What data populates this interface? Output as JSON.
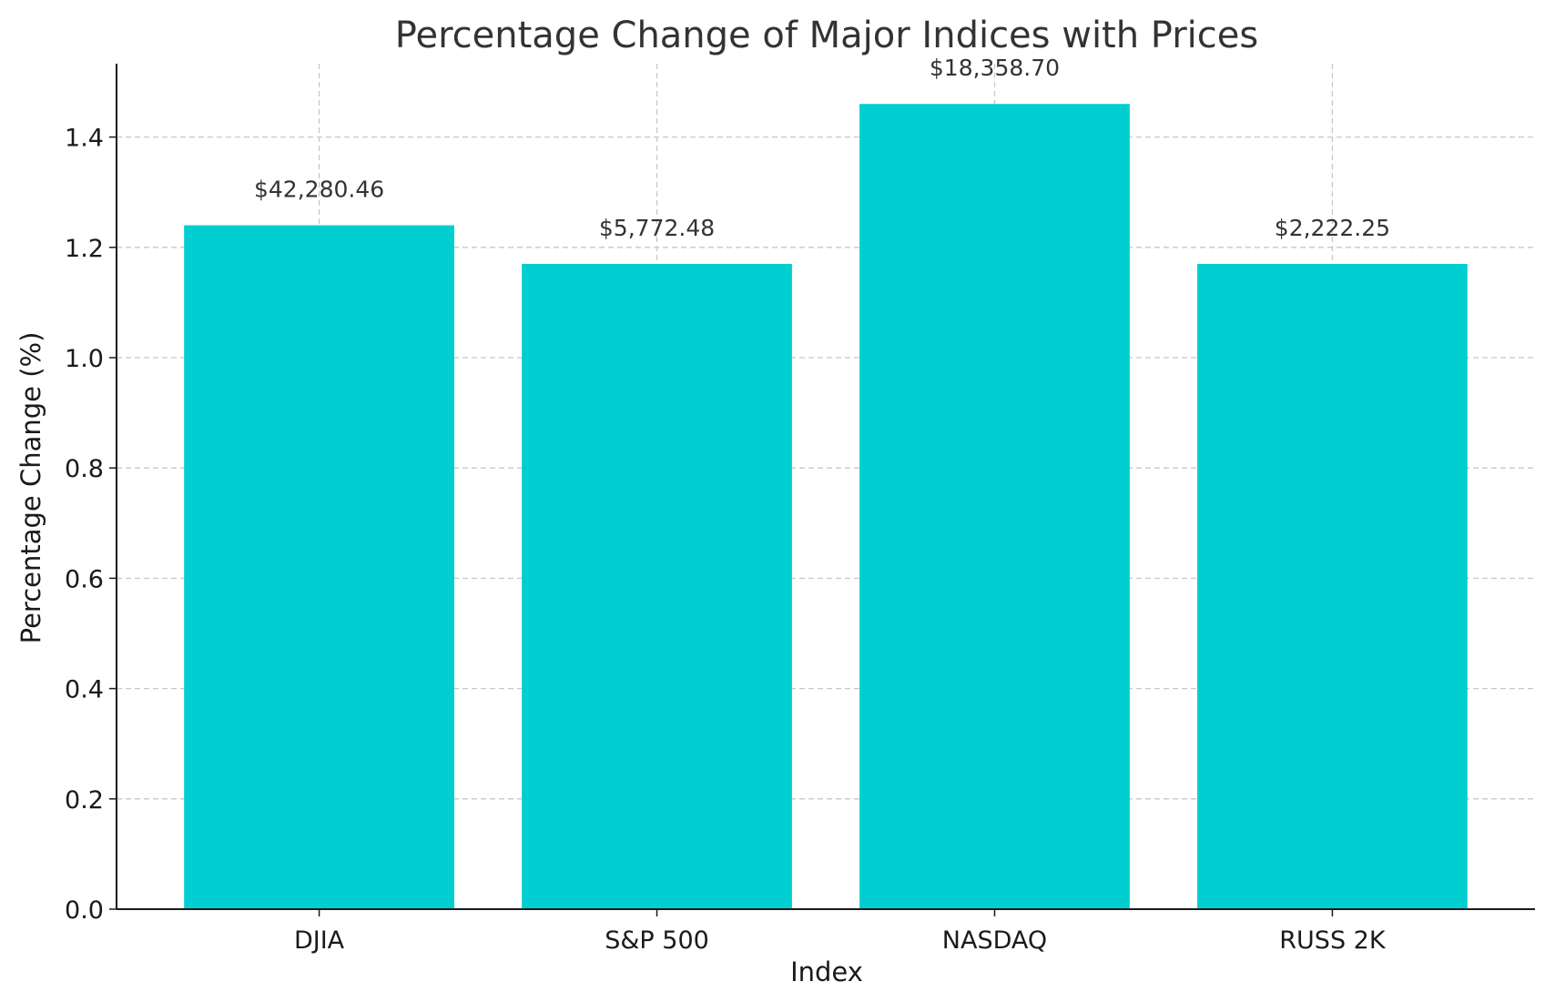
{
  "chart_data": {
    "type": "bar",
    "title": "Percentage Change of Major Indices with Prices",
    "xlabel": "Index",
    "ylabel": "Percentage Change (%)",
    "categories": [
      "DJIA",
      "S&P 500",
      "NASDAQ",
      "RUSS 2K"
    ],
    "values": [
      1.24,
      1.17,
      1.46,
      1.17
    ],
    "data_labels": [
      "$42,280.46",
      "$5,772.48",
      "$18,358.70",
      "$2,222.25"
    ],
    "yticks": [
      "0.0",
      "0.2",
      "0.4",
      "0.6",
      "0.8",
      "1.0",
      "1.2",
      "1.4"
    ],
    "ylim": [
      0,
      1.533
    ],
    "grid": true,
    "bar_color": "#00CED1"
  }
}
